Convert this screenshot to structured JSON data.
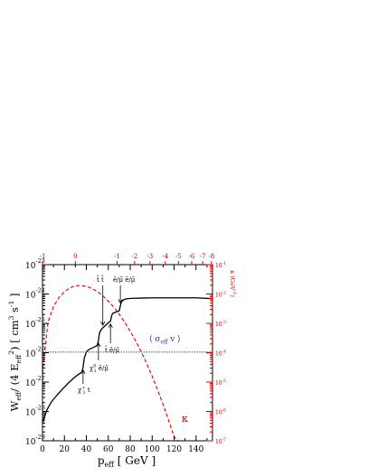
{
  "chart_data": {
    "type": "line",
    "xlabel": "p",
    "xlabel_sub": "eff",
    "xlabel_unit": " [ GeV ]",
    "ylabel": "W",
    "ylabel_sub1": "eff",
    "ylabel_mid": "/ (4 E",
    "ylabel_sub2": "eff",
    "ylabel_sup": "2",
    "ylabel_end": ") [ cm",
    "ylabel_sup2": "3",
    "ylabel_end2": " s",
    "ylabel_sup3": "-1",
    "ylabel_close": " ]",
    "y2label": "κ (GeV",
    "y2label_sup": "-1",
    "y2label_close": ")",
    "xlim": [
      0,
      155
    ],
    "ylim_exp": [
      -29,
      -23
    ],
    "y2lim_exp": [
      -7,
      -1
    ],
    "x_ticks": [
      0,
      20,
      40,
      60,
      80,
      100,
      120,
      140
    ],
    "y_tick_exps": [
      -29,
      -28,
      -27,
      -26,
      -25,
      -24,
      -23
    ],
    "y_tick_base": "10",
    "y2_tick_exps": [
      -7,
      -6,
      -5,
      -4,
      -3,
      -2,
      -1
    ],
    "top_axis_ticks": [
      {
        "label": "-1",
        "x": 0
      },
      {
        "label": "0",
        "x": 30
      },
      {
        "label": "-1",
        "x": 68
      },
      {
        "label": "-2",
        "x": 84
      },
      {
        "label": "-3",
        "x": 98
      },
      {
        "label": "-4",
        "x": 112
      },
      {
        "label": "-5",
        "x": 124
      },
      {
        "label": "-6",
        "x": 136
      },
      {
        "label": "-7",
        "x": 146
      },
      {
        "label": "-8",
        "x": 154
      }
    ],
    "series": [
      {
        "label": "W_eff",
        "color": "#000000",
        "style": "solid",
        "x": [
          0,
          4,
          8,
          12,
          16,
          20,
          24,
          28,
          32,
          36,
          37,
          38,
          40,
          42,
          44,
          46,
          48,
          50,
          51,
          52,
          54,
          56,
          58,
          60,
          62,
          63,
          64,
          66,
          68,
          70,
          71,
          72,
          74,
          76,
          80,
          90,
          100,
          120,
          140,
          155
        ],
        "y_log": [
          -28.4,
          -27.95,
          -27.68,
          -27.5,
          -27.33,
          -27.17,
          -27.02,
          -26.88,
          -26.76,
          -26.66,
          -26.5,
          -26.2,
          -25.97,
          -25.9,
          -25.86,
          -25.83,
          -25.79,
          -25.75,
          -25.58,
          -25.32,
          -25.19,
          -25.12,
          -25.05,
          -24.98,
          -24.93,
          -24.74,
          -24.66,
          -24.63,
          -24.6,
          -24.57,
          -24.4,
          -24.26,
          -24.2,
          -24.17,
          -24.15,
          -24.14,
          -24.13,
          -24.13,
          -24.13,
          -24.16
        ]
      },
      {
        "label": "κ",
        "color": "#d40000",
        "style": "dashed",
        "x": [
          0,
          5,
          10,
          15,
          20,
          25,
          30,
          35,
          40,
          45,
          50,
          55,
          60,
          65,
          70,
          75,
          80,
          85,
          90,
          95,
          100,
          105,
          110,
          115,
          120,
          124
        ],
        "y2_log": [
          -4.7,
          -2.95,
          -2.43,
          -2.12,
          -1.92,
          -1.79,
          -1.72,
          -1.71,
          -1.74,
          -1.81,
          -1.92,
          -2.06,
          -2.24,
          -2.45,
          -2.69,
          -2.96,
          -3.27,
          -3.6,
          -3.97,
          -4.37,
          -4.8,
          -5.27,
          -5.77,
          -6.3,
          -6.87,
          -7.0
        ]
      },
      {
        "label": "⟨σ_eff v⟩",
        "color": "#2233bb",
        "style": "dotted",
        "x": [
          0,
          155
        ],
        "y_log": [
          -25.98,
          -25.98
        ]
      }
    ],
    "annotations": [
      {
        "text": "χ",
        "sub": "1",
        "sup": "+",
        "after": " t",
        "x": 37
      },
      {
        "text": "χ",
        "sub": "1",
        "sup": "0",
        "after": " ẽ/μ̃",
        "x": 51
      },
      {
        "text": "t̃ t̃",
        "x": 55
      },
      {
        "text": "t̃ ẽ/μ̃",
        "x": 62
      },
      {
        "text": "ẽ/μ̃ ẽ/μ̃",
        "x": 71
      }
    ],
    "sigma_label": "⟨ σ",
    "sigma_sub": "eff",
    "sigma_end": " v ⟩",
    "kappa_label": "κ"
  }
}
